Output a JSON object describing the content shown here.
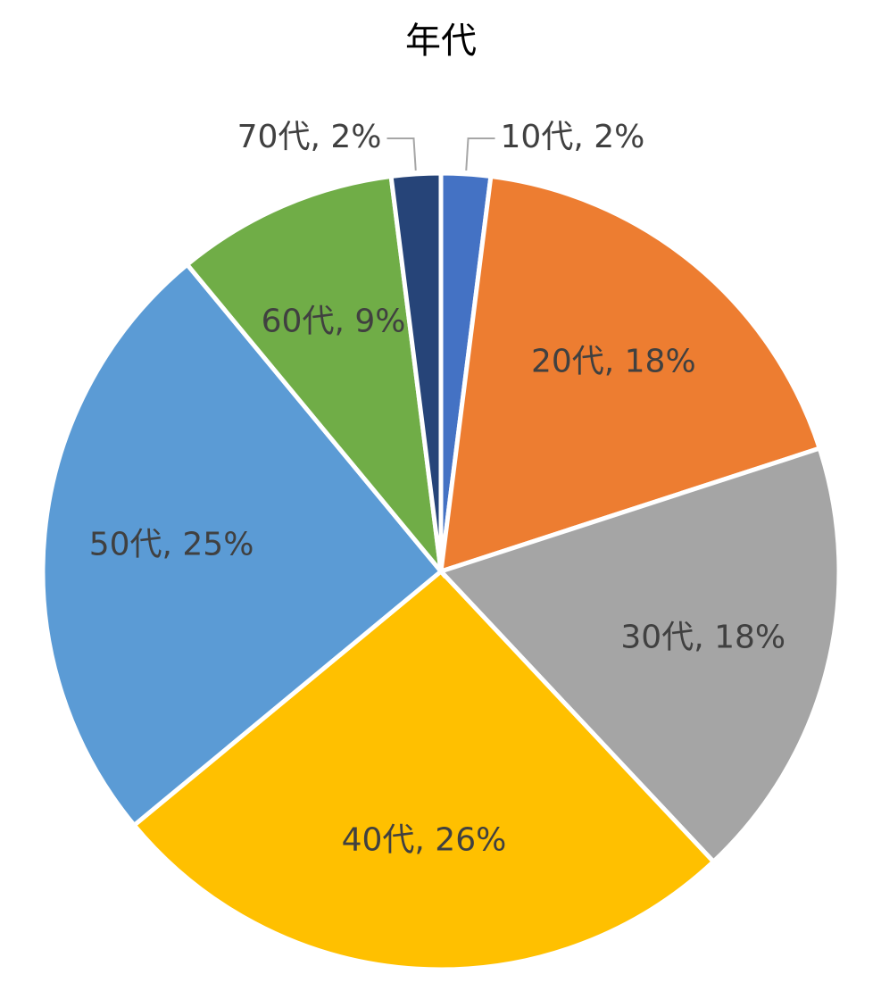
{
  "chart_data": {
    "type": "pie",
    "title": "年代",
    "categories": [
      "10代",
      "20代",
      "30代",
      "40代",
      "50代",
      "60代",
      "70代"
    ],
    "values": [
      2,
      18,
      18,
      26,
      25,
      9,
      2
    ],
    "value_labels": [
      ", 2%",
      ", 18%",
      ", 18%",
      ", 26%",
      ", 25%",
      ", 9%",
      ", 2%"
    ],
    "colors": [
      "#4472c4",
      "#ed7d31",
      "#a5a5a5",
      "#ffc000",
      "#5b9bd5",
      "#70ad47",
      "#264478"
    ]
  }
}
